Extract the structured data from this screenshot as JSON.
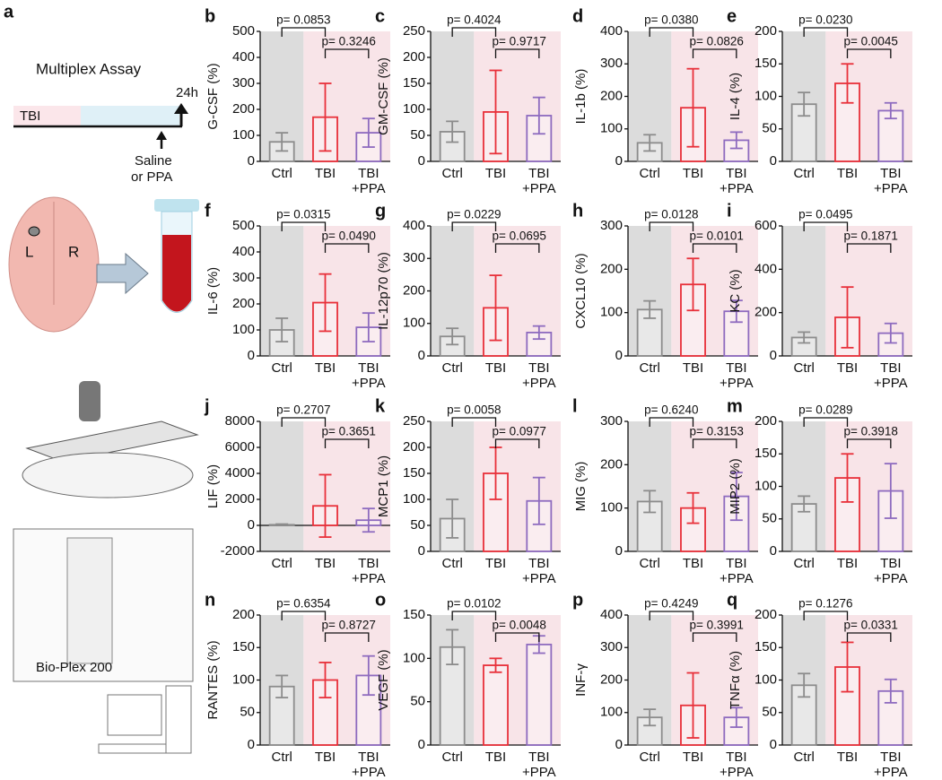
{
  "panel_a": {
    "letter": "a",
    "title": "Multiplex Assay",
    "tbi": "TBI",
    "time": "24h",
    "treat_1": "Saline",
    "treat_2": "or PPA",
    "left": "L",
    "right": "R",
    "device": "Bio-Plex 200"
  },
  "chart_data": [
    {
      "type": "bar",
      "panel": "b",
      "ylabel": "G-CSF (%)",
      "categories": [
        "Ctrl",
        "TBI",
        "TBI +PPA"
      ],
      "values": [
        75,
        170,
        110
      ],
      "errors": [
        35,
        130,
        55
      ],
      "colors": [
        "#8c8c8c",
        "#e8303a",
        "#8e6bbf"
      ],
      "ylim": [
        0,
        500
      ],
      "yticks": [
        0,
        100,
        200,
        300,
        400,
        500
      ],
      "p_values": {
        "ctrl_vs_tbi": "p= 0.0853",
        "tbi_vs_ppa": "p= 0.3246"
      }
    },
    {
      "type": "bar",
      "panel": "c",
      "ylabel": "GM-CSF (%)",
      "categories": [
        "Ctrl",
        "TBI",
        "TBI +PPA"
      ],
      "values": [
        57,
        95,
        88
      ],
      "errors": [
        20,
        80,
        35
      ],
      "colors": [
        "#8c8c8c",
        "#e8303a",
        "#8e6bbf"
      ],
      "ylim": [
        0,
        250
      ],
      "yticks": [
        0,
        50,
        100,
        150,
        200,
        250
      ],
      "p_values": {
        "ctrl_vs_tbi": "p= 0.4024",
        "tbi_vs_ppa": "p= 0.9717"
      }
    },
    {
      "type": "bar",
      "panel": "d",
      "ylabel": "IL-1b (%)",
      "categories": [
        "Ctrl",
        "TBI",
        "TBI +PPA"
      ],
      "values": [
        57,
        165,
        65
      ],
      "errors": [
        25,
        120,
        25
      ],
      "colors": [
        "#8c8c8c",
        "#e8303a",
        "#8e6bbf"
      ],
      "ylim": [
        0,
        400
      ],
      "yticks": [
        0,
        100,
        200,
        300,
        400
      ],
      "p_values": {
        "ctrl_vs_tbi": "p= 0.0380",
        "tbi_vs_ppa": "p= 0.0826"
      }
    },
    {
      "type": "bar",
      "panel": "e",
      "ylabel": "IL-4 (%)",
      "categories": [
        "Ctrl",
        "TBI",
        "TBI +PPA"
      ],
      "values": [
        88,
        120,
        78
      ],
      "errors": [
        18,
        30,
        12
      ],
      "colors": [
        "#8c8c8c",
        "#e8303a",
        "#8e6bbf"
      ],
      "ylim": [
        0,
        200
      ],
      "yticks": [
        0,
        50,
        100,
        150,
        200
      ],
      "p_values": {
        "ctrl_vs_tbi": "p= 0.0230",
        "tbi_vs_ppa": "p= 0.0045"
      }
    },
    {
      "type": "bar",
      "panel": "f",
      "ylabel": "IL-6 (%)",
      "categories": [
        "Ctrl",
        "TBI",
        "TBI +PPA"
      ],
      "values": [
        100,
        205,
        110
      ],
      "errors": [
        45,
        110,
        55
      ],
      "colors": [
        "#8c8c8c",
        "#e8303a",
        "#8e6bbf"
      ],
      "ylim": [
        0,
        500
      ],
      "yticks": [
        0,
        100,
        200,
        300,
        400,
        500
      ],
      "p_values": {
        "ctrl_vs_tbi": "p= 0.0315",
        "tbi_vs_ppa": "p= 0.0490"
      }
    },
    {
      "type": "bar",
      "panel": "g",
      "ylabel": "IL-12p70 (%)",
      "categories": [
        "Ctrl",
        "TBI",
        "TBI +PPA"
      ],
      "values": [
        60,
        148,
        72
      ],
      "errors": [
        25,
        100,
        20
      ],
      "colors": [
        "#8c8c8c",
        "#e8303a",
        "#8e6bbf"
      ],
      "ylim": [
        0,
        400
      ],
      "yticks": [
        0,
        100,
        200,
        300,
        400
      ],
      "p_values": {
        "ctrl_vs_tbi": "p= 0.0229",
        "tbi_vs_ppa": "p= 0.0695"
      }
    },
    {
      "type": "bar",
      "panel": "h",
      "ylabel": "CXCL10 (%)",
      "categories": [
        "Ctrl",
        "TBI",
        "TBI +PPA"
      ],
      "values": [
        107,
        165,
        103
      ],
      "errors": [
        20,
        60,
        25
      ],
      "colors": [
        "#8c8c8c",
        "#e8303a",
        "#8e6bbf"
      ],
      "ylim": [
        0,
        300
      ],
      "yticks": [
        0,
        100,
        200,
        300
      ],
      "p_values": {
        "ctrl_vs_tbi": "p= 0.0128",
        "tbi_vs_ppa": "p= 0.0101"
      }
    },
    {
      "type": "bar",
      "panel": "i",
      "ylabel": "KC (%)",
      "categories": [
        "Ctrl",
        "TBI",
        "TBI +PPA"
      ],
      "values": [
        85,
        178,
        105
      ],
      "errors": [
        25,
        140,
        45
      ],
      "colors": [
        "#8c8c8c",
        "#e8303a",
        "#8e6bbf"
      ],
      "ylim": [
        0,
        600
      ],
      "yticks": [
        0,
        200,
        400,
        600
      ],
      "p_values": {
        "ctrl_vs_tbi": "p= 0.0495",
        "tbi_vs_ppa": "p= 0.1871"
      }
    },
    {
      "type": "bar",
      "panel": "j",
      "ylabel": "LIF (%)",
      "categories": [
        "Ctrl",
        "TBI",
        "TBI +PPA"
      ],
      "values": [
        50,
        1500,
        400
      ],
      "errors": [
        50,
        2400,
        900
      ],
      "colors": [
        "#8c8c8c",
        "#e8303a",
        "#8e6bbf"
      ],
      "ylim": [
        -2000,
        8000
      ],
      "yticks": [
        -2000,
        0,
        2000,
        4000,
        6000,
        8000
      ],
      "p_values": {
        "ctrl_vs_tbi": "p= 0.2707",
        "tbi_vs_ppa": "p= 0.3651"
      }
    },
    {
      "type": "bar",
      "panel": "k",
      "ylabel": "MCP1 (%)",
      "categories": [
        "Ctrl",
        "TBI",
        "TBI +PPA"
      ],
      "values": [
        63,
        150,
        97
      ],
      "errors": [
        37,
        50,
        45
      ],
      "colors": [
        "#8c8c8c",
        "#e8303a",
        "#8e6bbf"
      ],
      "ylim": [
        0,
        250
      ],
      "yticks": [
        0,
        50,
        100,
        150,
        200,
        250
      ],
      "p_values": {
        "ctrl_vs_tbi": "p= 0.0058",
        "tbi_vs_ppa": "p= 0.0977"
      }
    },
    {
      "type": "bar",
      "panel": "l",
      "ylabel": "MIG (%)",
      "categories": [
        "Ctrl",
        "TBI",
        "TBI +PPA"
      ],
      "values": [
        115,
        100,
        127
      ],
      "errors": [
        25,
        35,
        55
      ],
      "colors": [
        "#8c8c8c",
        "#e8303a",
        "#8e6bbf"
      ],
      "ylim": [
        0,
        300
      ],
      "yticks": [
        0,
        100,
        200,
        300
      ],
      "p_values": {
        "ctrl_vs_tbi": "p= 0.6240",
        "tbi_vs_ppa": "p= 0.3153"
      }
    },
    {
      "type": "bar",
      "panel": "m",
      "ylabel": "MIP2 (%)",
      "categories": [
        "Ctrl",
        "TBI",
        "TBI +PPA"
      ],
      "values": [
        73,
        113,
        93
      ],
      "errors": [
        12,
        37,
        42
      ],
      "colors": [
        "#8c8c8c",
        "#e8303a",
        "#8e6bbf"
      ],
      "ylim": [
        0,
        200
      ],
      "yticks": [
        0,
        50,
        100,
        150,
        200
      ],
      "p_values": {
        "ctrl_vs_tbi": "p= 0.0289",
        "tbi_vs_ppa": "p= 0.3918"
      }
    },
    {
      "type": "bar",
      "panel": "n",
      "ylabel": "RANTES (%)",
      "categories": [
        "Ctrl",
        "TBI",
        "TBI +PPA"
      ],
      "values": [
        90,
        100,
        107
      ],
      "errors": [
        17,
        27,
        30
      ],
      "colors": [
        "#8c8c8c",
        "#e8303a",
        "#8e6bbf"
      ],
      "ylim": [
        0,
        200
      ],
      "yticks": [
        0,
        50,
        100,
        150,
        200
      ],
      "p_values": {
        "ctrl_vs_tbi": "p= 0.6354",
        "tbi_vs_ppa": "p= 0.8727"
      }
    },
    {
      "type": "bar",
      "panel": "o",
      "ylabel": "VEGF (%)",
      "categories": [
        "Ctrl",
        "TBI",
        "TBI +PPA"
      ],
      "values": [
        113,
        92,
        116
      ],
      "errors": [
        20,
        8,
        10
      ],
      "colors": [
        "#8c8c8c",
        "#e8303a",
        "#8e6bbf"
      ],
      "ylim": [
        0,
        150
      ],
      "yticks": [
        0,
        50,
        100,
        150
      ],
      "p_values": {
        "ctrl_vs_tbi": "p= 0.0102",
        "tbi_vs_ppa": "p= 0.0048"
      }
    },
    {
      "type": "bar",
      "panel": "p",
      "ylabel": "INF-γ",
      "categories": [
        "Ctrl",
        "TBI",
        "TBI +PPA"
      ],
      "values": [
        85,
        122,
        85
      ],
      "errors": [
        25,
        100,
        30
      ],
      "colors": [
        "#8c8c8c",
        "#e8303a",
        "#8e6bbf"
      ],
      "ylim": [
        0,
        400
      ],
      "yticks": [
        0,
        100,
        200,
        300,
        400
      ],
      "p_values": {
        "ctrl_vs_tbi": "p= 0.4249",
        "tbi_vs_ppa": "p= 0.3991"
      }
    },
    {
      "type": "bar",
      "panel": "q",
      "ylabel": "TNFα (%)",
      "categories": [
        "Ctrl",
        "TBI",
        "TBI +PPA"
      ],
      "values": [
        92,
        120,
        83
      ],
      "errors": [
        18,
        38,
        18
      ],
      "colors": [
        "#8c8c8c",
        "#e8303a",
        "#8e6bbf"
      ],
      "ylim": [
        0,
        200
      ],
      "yticks": [
        0,
        50,
        100,
        150,
        200
      ],
      "p_values": {
        "ctrl_vs_tbi": "p= 0.1276",
        "tbi_vs_ppa": "p= 0.0331"
      }
    }
  ]
}
